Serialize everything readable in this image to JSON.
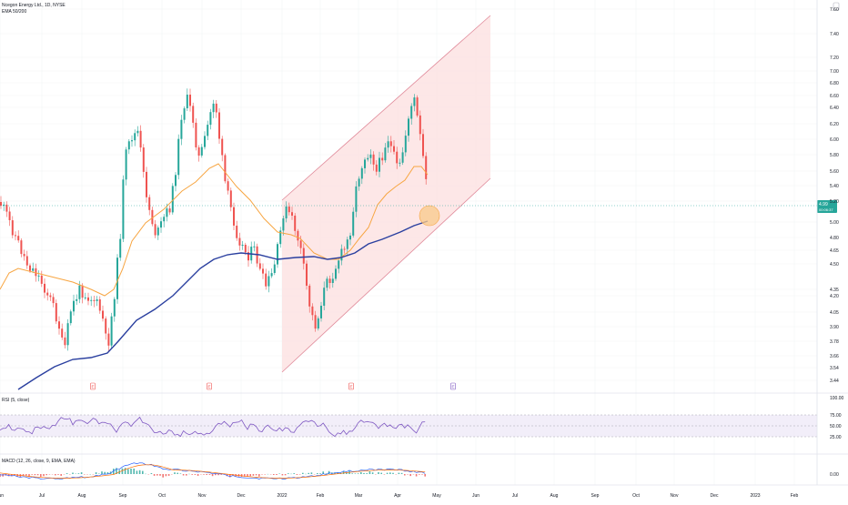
{
  "legend": {
    "main": "Ncegon Energy Ltd., 1D, NYSE",
    "ema": "EMA 50/200",
    "rsi": "RSI (5, close)",
    "macd": "MACD (12, 26, close, 9, EMA, EMA)"
  },
  "price_axis": {
    "labels": [
      "7.60",
      "7.40",
      "7.20",
      "7.00",
      "6.80",
      "6.60",
      "6.40",
      "6.20",
      "6.00",
      "5.80",
      "5.60",
      "5.40",
      "5.20",
      "5.00",
      "4.80",
      "4.65",
      "4.50",
      "4.35",
      "4.20",
      "4.05",
      "3.90",
      "3.78",
      "3.66",
      "3.54",
      "3.44",
      "3.34"
    ]
  },
  "last_price": {
    "value": "4.99",
    "countdown": "00:06:37"
  },
  "rsi_axis": {
    "labels": [
      "100.00",
      "75.00",
      "50.00",
      "25.00"
    ]
  },
  "macd_axis": {
    "labels": [
      "0.00"
    ]
  },
  "time_axis": {
    "labels": [
      "Jun",
      "Jul",
      "Aug",
      "Sep",
      "Oct",
      "Nov",
      "Dec",
      "2022",
      "Feb",
      "Mar",
      "Apr",
      "May",
      "Jun",
      "Jul",
      "Aug",
      "Sep",
      "Oct",
      "Nov",
      "Dec",
      "2023",
      "Feb"
    ]
  },
  "event_markers": [
    "E",
    "E",
    "E",
    "E"
  ],
  "colors": {
    "up": "#26a69a",
    "down": "#ef5350",
    "ema_fast": "#f7a541",
    "ema_slow": "#2a3f9f",
    "rsi": "#7e57c2",
    "channel_fill": "#fde3e3",
    "channel_line": "#e08a9a",
    "macd_line": "#2962ff",
    "signal_line": "#ff6d00"
  },
  "chart_data": {
    "type": "candlestick",
    "title": "Ncegon Energy Ltd., 1D, NYSE",
    "ylim": [
      3.3,
      7.65
    ],
    "series": [
      {
        "name": "EMA 50",
        "note": "orange moving average"
      },
      {
        "name": "EMA 200",
        "note": "blue moving average"
      }
    ],
    "last_value": 4.99,
    "rsi": {
      "range": [
        0,
        100
      ],
      "bands": [
        30,
        70
      ]
    }
  }
}
